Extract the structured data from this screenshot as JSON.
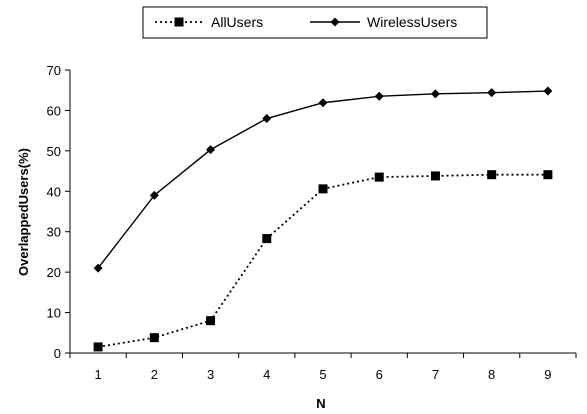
{
  "chart_data": {
    "type": "line",
    "title": "",
    "xlabel": "N",
    "ylabel": "OverlappedUsers(%)",
    "x": [
      1,
      2,
      3,
      4,
      5,
      6,
      7,
      8,
      9
    ],
    "xlim": [
      0.5,
      9.5
    ],
    "ylim": [
      0,
      70
    ],
    "yticks": [
      0,
      10,
      20,
      30,
      40,
      50,
      60,
      70
    ],
    "grid": false,
    "legend_position": "top-center",
    "series": [
      {
        "name": "AllUsers",
        "line_style": "dotted",
        "marker": "square",
        "color": "#000000",
        "values": [
          1.5,
          3.8,
          8.0,
          28.3,
          40.6,
          43.5,
          43.8,
          44.1,
          44.1
        ]
      },
      {
        "name": "WirelessUsers",
        "line_style": "solid",
        "marker": "diamond",
        "color": "#000000",
        "values": [
          21.0,
          39.0,
          50.3,
          58.0,
          61.9,
          63.5,
          64.1,
          64.4,
          64.8
        ]
      }
    ]
  }
}
